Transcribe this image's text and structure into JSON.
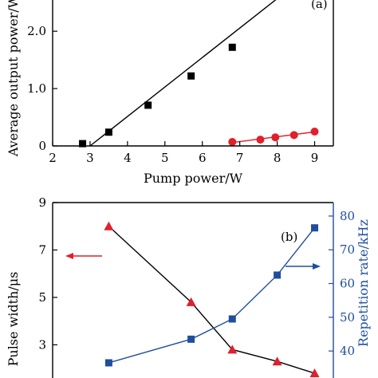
{
  "chart_data": [
    {
      "type": "scatter",
      "panel_label": "(a)",
      "xlabel": "Pump power/W",
      "ylabel": "Average output power/W",
      "xlim": [
        2,
        9.5
      ],
      "ylim": [
        0,
        2.6
      ],
      "xticks": [
        "2",
        "3",
        "4",
        "5",
        "6",
        "7",
        "8",
        "9"
      ],
      "yticks": [
        "0",
        "1.0",
        "2.0"
      ],
      "series": [
        {
          "marker": "square",
          "color": "#000000",
          "x": [
            2.8,
            3.5,
            4.55,
            5.7,
            6.8
          ],
          "y": [
            0.04,
            0.24,
            0.71,
            1.22,
            1.72
          ],
          "fit": {
            "x": [
              3.0,
              8.1
            ],
            "y": [
              0.0,
              2.62
            ]
          }
        },
        {
          "marker": "circle",
          "color": "#e0202a",
          "x": [
            6.8,
            7.55,
            7.95,
            8.45,
            9.0
          ],
          "y": [
            0.07,
            0.11,
            0.15,
            0.19,
            0.25
          ],
          "fit": {
            "x": [
              6.75,
              9.0
            ],
            "y": [
              0.055,
              0.245
            ]
          }
        }
      ]
    },
    {
      "type": "line",
      "panel_label": "(b)",
      "ylabel": "Pulse width/μs",
      "y2label": "Repetition rate/kHz",
      "ylim": [
        1.6,
        9
      ],
      "y2lim": [
        32,
        84
      ],
      "yticks": [
        "3",
        "5",
        "7",
        "9"
      ],
      "y2ticks": [
        "40",
        "50",
        "60",
        "70",
        "80"
      ],
      "series": [
        {
          "marker": "triangle",
          "color": "#e0202a",
          "axis": "left",
          "x": [
            3.5,
            5.7,
            6.8,
            8.0,
            9.0
          ],
          "y": [
            8.0,
            4.8,
            2.8,
            2.3,
            1.8
          ]
        },
        {
          "marker": "square",
          "color": "#1f4e9c",
          "axis": "right",
          "x": [
            3.5,
            5.7,
            6.8,
            8.0,
            9.0
          ],
          "y": [
            36.5,
            43.5,
            49.5,
            62.5,
            76.5
          ]
        }
      ]
    }
  ]
}
